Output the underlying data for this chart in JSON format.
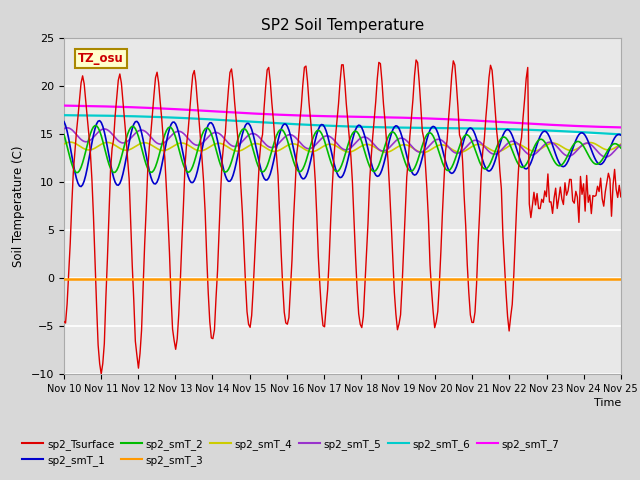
{
  "title": "SP2 Soil Temperature",
  "ylabel": "Soil Temperature (C)",
  "ylim": [
    -10,
    25
  ],
  "yticks": [
    -10,
    -5,
    0,
    5,
    10,
    15,
    20,
    25
  ],
  "xtick_labels": [
    "Nov 10",
    "Nov 11",
    "Nov 12",
    "Nov 13",
    "Nov 14",
    "Nov 15",
    "Nov 16",
    "Nov 17",
    "Nov 18",
    "Nov 19",
    "Nov 20",
    "Nov 21",
    "Nov 22",
    "Nov 23",
    "Nov 24",
    "Nov 25"
  ],
  "annotation_text": "TZ_osu",
  "annotation_color": "#cc0000",
  "annotation_bg": "#ffffcc",
  "annotation_border": "#aa8800",
  "series_colors": {
    "sp2_Tsurface": "#dd0000",
    "sp2_smT_1": "#0000cc",
    "sp2_smT_2": "#00bb00",
    "sp2_smT_3": "#ff9900",
    "sp2_smT_4": "#cccc00",
    "sp2_smT_5": "#9933cc",
    "sp2_smT_6": "#00cccc",
    "sp2_smT_7": "#ff00ff"
  },
  "fig_bg": "#d8d8d8",
  "plot_bg": "#e8e8e8",
  "grid_color": "#ffffff"
}
